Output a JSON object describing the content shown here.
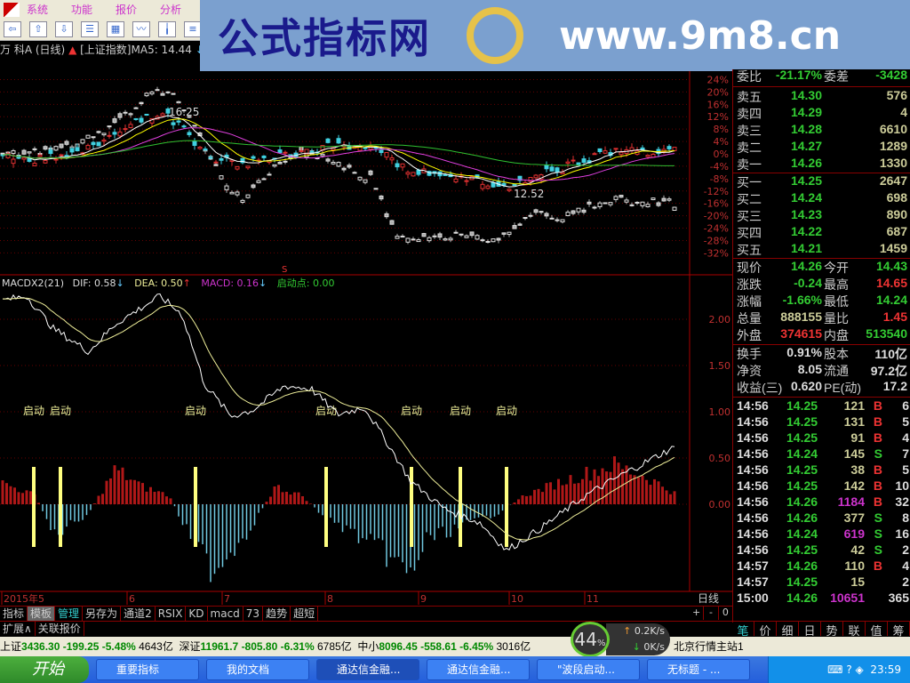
{
  "menu": [
    "系统",
    "功能",
    "报价",
    "分析",
    "扩展"
  ],
  "toolbar_icons": [
    "back-arrow-icon",
    "up-arrow-icon",
    "down-arrow-icon",
    "report-icon",
    "table-icon",
    "line-chart-icon",
    "candlestick-icon",
    "list-icon",
    "f10-icon",
    "tree-icon"
  ],
  "info": {
    "stock": "万 科A",
    "period": "(日线)",
    "overlay": "[上证指数]",
    "ma5": "MA5: 14.44"
  },
  "watermark": {
    "text": "公式指标网",
    "url": "www.9m8.cn"
  },
  "price_chart": {
    "pct_ticks": [
      "24%",
      "20%",
      "16%",
      "12%",
      "8%",
      "4%",
      "0%",
      "-4%",
      "-8%",
      "-12%",
      "-16%",
      "-20%",
      "-24%",
      "-28%",
      "-32%"
    ],
    "high_label": "16.25",
    "low_label": "12.52",
    "marker": "S",
    "stock_path_pct": [
      [
        0,
        0
      ],
      [
        40,
        -2
      ],
      [
        80,
        0
      ],
      [
        120,
        5
      ],
      [
        160,
        11
      ],
      [
        185,
        13
      ],
      [
        205,
        8
      ],
      [
        225,
        1
      ],
      [
        250,
        -2
      ],
      [
        275,
        -3
      ],
      [
        300,
        -2
      ],
      [
        330,
        0
      ],
      [
        360,
        2
      ],
      [
        400,
        3
      ],
      [
        420,
        2
      ],
      [
        440,
        -2
      ],
      [
        460,
        -5
      ],
      [
        500,
        -8
      ],
      [
        540,
        -9
      ],
      [
        570,
        -11
      ],
      [
        600,
        -7
      ],
      [
        640,
        -4
      ],
      [
        680,
        0
      ],
      [
        720,
        1
      ],
      [
        760,
        1
      ]
    ],
    "index_path_pct": [
      [
        0,
        0
      ],
      [
        60,
        2
      ],
      [
        110,
        6
      ],
      [
        150,
        15
      ],
      [
        175,
        21
      ],
      [
        200,
        18
      ],
      [
        225,
        6
      ],
      [
        250,
        -8
      ],
      [
        272,
        -14
      ],
      [
        300,
        -6
      ],
      [
        340,
        2
      ],
      [
        380,
        -4
      ],
      [
        420,
        -8
      ],
      [
        440,
        -24
      ],
      [
        460,
        -28
      ],
      [
        500,
        -26
      ],
      [
        560,
        -28
      ],
      [
        600,
        -20
      ],
      [
        640,
        -20
      ],
      [
        680,
        -15
      ],
      [
        760,
        -16
      ]
    ]
  },
  "macd": {
    "header": {
      "name": "MACDX2(21)",
      "dif": "DIF: 0.58",
      "dea": "DEA: 0.50",
      "macd": "MACD: 0.16",
      "start": "启动点: 0.00"
    },
    "ticks": [
      "2.00",
      "1.50",
      "1.00",
      "0.50",
      "0.00"
    ],
    "signal_label": "启动",
    "signals": [
      38,
      68,
      220,
      367,
      463,
      518,
      570
    ],
    "dif_path": [
      [
        0,
        2.2
      ],
      [
        30,
        2.25
      ],
      [
        60,
        1.9
      ],
      [
        100,
        1.65
      ],
      [
        130,
        1.95
      ],
      [
        180,
        2.25
      ],
      [
        205,
        2.05
      ],
      [
        230,
        1.3
      ],
      [
        260,
        0.95
      ],
      [
        285,
        1.02
      ],
      [
        320,
        1.28
      ],
      [
        350,
        1.25
      ],
      [
        380,
        0.97
      ],
      [
        410,
        1.05
      ],
      [
        440,
        0.6
      ],
      [
        462,
        0.25
      ],
      [
        500,
        -0.05
      ],
      [
        540,
        -0.2
      ],
      [
        570,
        -0.5
      ],
      [
        610,
        -0.25
      ],
      [
        660,
        0.1
      ],
      [
        700,
        0.32
      ],
      [
        755,
        0.6
      ]
    ],
    "hist_path": [
      [
        0,
        0.25
      ],
      [
        40,
        0.1
      ],
      [
        60,
        -0.35
      ],
      [
        100,
        -0.1
      ],
      [
        130,
        0.4
      ],
      [
        160,
        0.2
      ],
      [
        190,
        0.1
      ],
      [
        210,
        -0.3
      ],
      [
        240,
        -0.75
      ],
      [
        280,
        -0.3
      ],
      [
        310,
        0.2
      ],
      [
        340,
        0.1
      ],
      [
        360,
        -0.1
      ],
      [
        400,
        -0.35
      ],
      [
        440,
        -0.6
      ],
      [
        460,
        -0.85
      ],
      [
        480,
        -0.4
      ],
      [
        520,
        -0.25
      ],
      [
        560,
        -0.1
      ],
      [
        590,
        0.1
      ],
      [
        630,
        0.25
      ],
      [
        690,
        0.45
      ],
      [
        730,
        0.3
      ],
      [
        760,
        0.12
      ]
    ]
  },
  "date_axis": [
    "2015年5",
    "6",
    "7",
    "8",
    "9",
    "10",
    "11"
  ],
  "period_label": "日线",
  "zoom_buttons": [
    "+",
    "-",
    "0"
  ],
  "quote": {
    "weibi": {
      "label": "委比",
      "value": "-21.17%",
      "label2": "委差",
      "value2": "-3428"
    },
    "asks": [
      {
        "label": "卖五",
        "price": "14.30",
        "vol": "576"
      },
      {
        "label": "卖四",
        "price": "14.29",
        "vol": "4"
      },
      {
        "label": "卖三",
        "price": "14.28",
        "vol": "6610"
      },
      {
        "label": "卖二",
        "price": "14.27",
        "vol": "1289"
      },
      {
        "label": "卖一",
        "price": "14.26",
        "vol": "1330"
      }
    ],
    "bids": [
      {
        "label": "买一",
        "price": "14.25",
        "vol": "2647"
      },
      {
        "label": "买二",
        "price": "14.24",
        "vol": "698"
      },
      {
        "label": "买三",
        "price": "14.23",
        "vol": "890"
      },
      {
        "label": "买四",
        "price": "14.22",
        "vol": "687"
      },
      {
        "label": "买五",
        "price": "14.21",
        "vol": "1459"
      }
    ],
    "stats": [
      {
        "l1": "现价",
        "v1": "14.26",
        "c1": "g",
        "l2": "今开",
        "v2": "14.43",
        "c2": "g"
      },
      {
        "l1": "涨跌",
        "v1": "-0.24",
        "c1": "g",
        "l2": "最高",
        "v2": "14.65",
        "c2": "r"
      },
      {
        "l1": "涨幅",
        "v1": "-1.66%",
        "c1": "g",
        "l2": "最低",
        "v2": "14.24",
        "c2": "g"
      },
      {
        "l1": "总量",
        "v1": "888155",
        "c1": "y",
        "l2": "量比",
        "v2": "1.45",
        "c2": "r"
      },
      {
        "l1": "外盘",
        "v1": "374615",
        "c1": "r",
        "l2": "内盘",
        "v2": "513540",
        "c2": "g"
      }
    ],
    "fund": [
      {
        "l1": "换手",
        "v1": "0.91%",
        "l2": "股本",
        "v2": "110亿"
      },
      {
        "l1": "净资",
        "v1": "8.05",
        "l2": "流通",
        "v2": "97.2亿"
      },
      {
        "l1": "收益(三)",
        "v1": "0.620",
        "l2": "PE(动)",
        "v2": "17.2"
      }
    ],
    "trades": [
      {
        "t": "14:56",
        "p": "14.25",
        "v": "121",
        "vc": "y",
        "bs": "B",
        "n": "6"
      },
      {
        "t": "14:56",
        "p": "14.25",
        "v": "131",
        "vc": "y",
        "bs": "B",
        "n": "5"
      },
      {
        "t": "14:56",
        "p": "14.25",
        "v": "91",
        "vc": "y",
        "bs": "B",
        "n": "4"
      },
      {
        "t": "14:56",
        "p": "14.24",
        "v": "145",
        "vc": "y",
        "bs": "S",
        "n": "7"
      },
      {
        "t": "14:56",
        "p": "14.25",
        "v": "38",
        "vc": "y",
        "bs": "B",
        "n": "5"
      },
      {
        "t": "14:56",
        "p": "14.25",
        "v": "142",
        "vc": "y",
        "bs": "B",
        "n": "10"
      },
      {
        "t": "14:56",
        "p": "14.26",
        "v": "1184",
        "vc": "m",
        "bs": "B",
        "n": "32"
      },
      {
        "t": "14:56",
        "p": "14.26",
        "v": "377",
        "vc": "y",
        "bs": "S",
        "n": "8"
      },
      {
        "t": "14:56",
        "p": "14.24",
        "v": "619",
        "vc": "m",
        "bs": "S",
        "n": "16"
      },
      {
        "t": "14:56",
        "p": "14.25",
        "v": "42",
        "vc": "y",
        "bs": "S",
        "n": "2"
      },
      {
        "t": "14:57",
        "p": "14.26",
        "v": "110",
        "vc": "y",
        "bs": "B",
        "n": "4"
      },
      {
        "t": "14:57",
        "p": "14.25",
        "v": "15",
        "vc": "y",
        "bs": "",
        "n": "2"
      },
      {
        "t": "15:00",
        "p": "14.26",
        "v": "10651",
        "vc": "m",
        "bs": "",
        "n": "365"
      }
    ]
  },
  "right_tabs": [
    "笔",
    "价",
    "细",
    "日",
    "势",
    "联",
    "值",
    "筹"
  ],
  "bottom_tabs": [
    "指标",
    "模板",
    "管理",
    "另存为",
    "通道2",
    "RSIX",
    "KD",
    "macd",
    "73",
    "趋势",
    "超短"
  ],
  "ext_tabs": [
    "扩展∧",
    "关联报价"
  ],
  "net": {
    "percent": "44",
    "unit": "%",
    "up": "0.2K/s",
    "down": "0K/s"
  },
  "status": {
    "sh_label": "上证",
    "sh": "3436.30 -199.25 -5.48%",
    "sh_amt": "4643亿",
    "sz_label": "深证",
    "sz": "11961.7 -805.80 -6.31%",
    "sz_amt": "6785亿",
    "zx_label": "中小",
    "zx": "8096.45 -558.61 -6.45%",
    "zx_amt": "3016亿",
    "server": "北京行情主站1"
  },
  "taskbar": {
    "start": "开始",
    "tasks": [
      "重要指标",
      "我的文档",
      "通达信金融...",
      "通达信金融...",
      "\"波段启动...",
      "无标题 - ..."
    ],
    "clock": "23:59"
  },
  "colors": {
    "up": "#e03030",
    "down": "#40d0e0",
    "ma5": "#ffffff",
    "ma10": "#ffff00",
    "ma20": "#e040e0",
    "ma60": "#30c030",
    "signal": "#ffff80"
  }
}
